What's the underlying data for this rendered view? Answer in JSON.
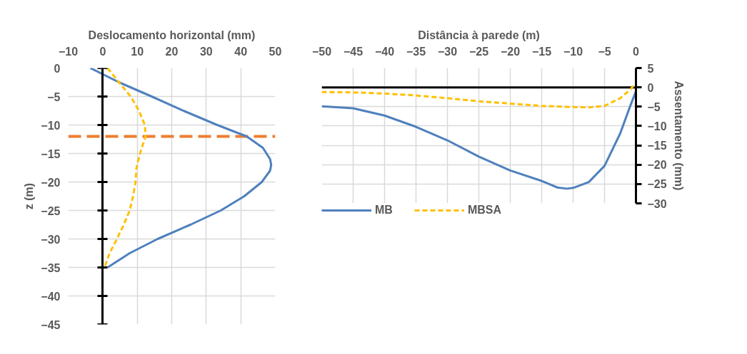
{
  "chart_data": [
    {
      "type": "line",
      "xlabel": "Deslocamento horizontal (mm)",
      "ylabel": "z (m)",
      "xlim": [
        -10,
        50
      ],
      "xticks": [
        -10,
        0,
        10,
        20,
        30,
        40,
        50
      ],
      "ylim": [
        -45,
        0
      ],
      "yticks": [
        0,
        -5,
        -10,
        -15,
        -20,
        -25,
        -30,
        -35,
        -40,
        -45
      ],
      "grid": true,
      "series": [
        {
          "color": "#4f81bd",
          "line_style": "solid",
          "x": [
            -3.6,
            4.7,
            14.2,
            23.4,
            33.2,
            41.7,
            46.4,
            48.5,
            48.8,
            48.5,
            46.1,
            41,
            34.2,
            25.4,
            15.9,
            7.8,
            1.4
          ],
          "values": [
            0,
            -2.5,
            -5,
            -7.5,
            -10,
            -12,
            -14,
            -16,
            -17,
            -18,
            -20,
            -22.5,
            -25,
            -27.5,
            -30,
            -32.5,
            -35
          ]
        },
        {
          "color": "#ffc000",
          "line_style": "dashed",
          "x": [
            1.4,
            4.7,
            8.1,
            10.5,
            12.2,
            12.4,
            10.8,
            9.8,
            9.5,
            8.8,
            7.8,
            6.1,
            4.1,
            2.0,
            0.5
          ],
          "values": [
            0,
            -2.5,
            -5,
            -7.5,
            -10,
            -12,
            -15,
            -17.5,
            -20,
            -22.5,
            -25,
            -27.5,
            -30,
            -32.5,
            -35
          ]
        }
      ],
      "ref_lines": [
        {
          "axis": "y",
          "value": -12,
          "color": "#ed7d31",
          "line_style": "dashed"
        }
      ]
    },
    {
      "type": "line",
      "xlabel": "Distância à parede (m)",
      "ylabel": "Assentamento (mm)",
      "xlim": [
        -50,
        0
      ],
      "xticks": [
        -50,
        -45,
        -40,
        -35,
        -30,
        -25,
        -20,
        -15,
        -10,
        -5,
        0
      ],
      "ylim": [
        -30,
        5
      ],
      "yticks": [
        5,
        0,
        -5,
        -10,
        -15,
        -20,
        -25,
        -30
      ],
      "grid": true,
      "legend": "bottom",
      "ref_lines": [
        {
          "axis": "y",
          "value": 0,
          "color": "#000000",
          "line_style": "solid"
        }
      ],
      "series": [
        {
          "name": "MB",
          "color": "#4f81bd",
          "line_style": "solid",
          "x": [
            -50,
            -45,
            -40,
            -35,
            -30,
            -25,
            -20,
            -15,
            -12.5,
            -11,
            -10,
            -7.5,
            -5,
            -2.5,
            -1,
            0
          ],
          "values": [
            -4.9,
            -5.4,
            -7.3,
            -10.2,
            -13.7,
            -17.9,
            -21.5,
            -24.2,
            -25.9,
            -26.2,
            -26.0,
            -24.5,
            -20.3,
            -11.9,
            -5.2,
            -1.0
          ]
        },
        {
          "name": "MBSA",
          "color": "#ffc000",
          "line_style": "dashed",
          "x": [
            -50,
            -45,
            -40,
            -35,
            -30,
            -25,
            -20,
            -15,
            -10,
            -7.5,
            -5,
            -2.5,
            -1,
            0
          ],
          "values": [
            -1.2,
            -1.3,
            -1.6,
            -2.1,
            -2.8,
            -3.6,
            -4.2,
            -4.8,
            -5.1,
            -5.2,
            -4.8,
            -2.8,
            -0.7,
            1.1
          ]
        }
      ]
    }
  ]
}
